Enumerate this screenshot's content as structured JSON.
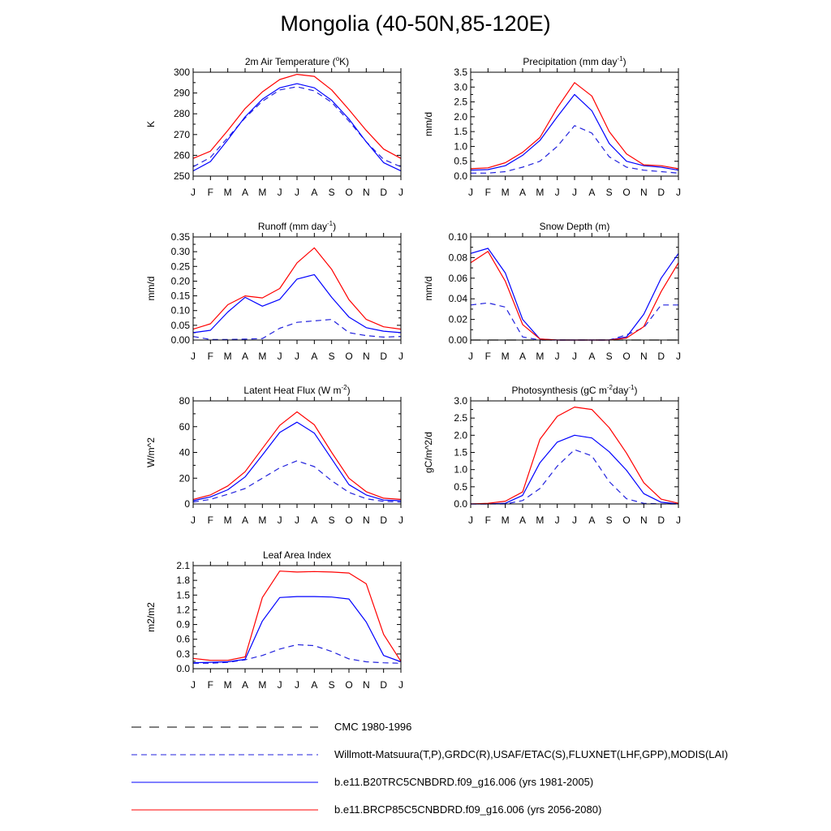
{
  "title": "Mongolia (40-50N,85-120E)",
  "months": [
    "J",
    "F",
    "M",
    "A",
    "M",
    "J",
    "J",
    "A",
    "S",
    "O",
    "N",
    "D",
    "J"
  ],
  "series_styles": [
    {
      "key": "cmc",
      "color": "#000000",
      "dash": "12,10"
    },
    {
      "key": "obs",
      "color": "#2222dd",
      "dash": "7,5"
    },
    {
      "key": "hist",
      "color": "#0000ff",
      "dash": ""
    },
    {
      "key": "rcp",
      "color": "#ff0000",
      "dash": ""
    }
  ],
  "chart_data": [
    {
      "type": "line",
      "title": "2m Air Temperature (",
      "title_sup": "o",
      "title_after": "K)",
      "ylabel": "K",
      "ylim": [
        250,
        300
      ],
      "yticks": [
        250,
        260,
        270,
        280,
        290,
        300
      ],
      "yticklabels": [
        "250",
        "260",
        "270",
        "280",
        "290",
        "300"
      ],
      "series": [
        {
          "name": "obs",
          "values": [
            254.5,
            259.0,
            268.5,
            278.0,
            286.0,
            291.5,
            293.0,
            291.0,
            285.5,
            276.5,
            266.5,
            258.0,
            254.5
          ]
        },
        {
          "name": "hist",
          "values": [
            252.5,
            257.0,
            267.5,
            278.5,
            287.0,
            292.5,
            294.5,
            292.5,
            286.5,
            277.5,
            266.5,
            256.5,
            252.5
          ]
        },
        {
          "name": "rcp",
          "values": [
            258.5,
            262.0,
            272.0,
            282.5,
            290.5,
            296.5,
            299.0,
            298.0,
            291.5,
            282.0,
            272.0,
            263.0,
            258.5
          ]
        }
      ]
    },
    {
      "type": "line",
      "title": "Precipitation (mm day",
      "title_sup": "-1",
      "title_after": ")",
      "ylabel": "mm/d",
      "ylim": [
        0,
        3.5
      ],
      "yticks": [
        0,
        0.5,
        1.0,
        1.5,
        2.0,
        2.5,
        3.0,
        3.5
      ],
      "yticklabels": [
        "0.0",
        "0.5",
        "1.0",
        "1.5",
        "2.0",
        "2.5",
        "3.0",
        "3.5"
      ],
      "series": [
        {
          "name": "obs",
          "values": [
            0.1,
            0.1,
            0.15,
            0.3,
            0.5,
            1.0,
            1.7,
            1.45,
            0.65,
            0.3,
            0.2,
            0.15,
            0.1
          ]
        },
        {
          "name": "hist",
          "values": [
            0.2,
            0.22,
            0.35,
            0.7,
            1.2,
            2.0,
            2.75,
            2.2,
            1.1,
            0.5,
            0.35,
            0.3,
            0.2
          ]
        },
        {
          "name": "rcp",
          "values": [
            0.25,
            0.28,
            0.45,
            0.8,
            1.3,
            2.3,
            3.15,
            2.7,
            1.5,
            0.75,
            0.38,
            0.35,
            0.25
          ]
        }
      ]
    },
    {
      "type": "line",
      "title": "Runoff (mm day",
      "title_sup": "-1",
      "title_after": ")",
      "ylabel": "mm/d",
      "ylim": [
        0,
        0.35
      ],
      "yticks": [
        0,
        0.05,
        0.1,
        0.15,
        0.2,
        0.25,
        0.3,
        0.35
      ],
      "yticklabels": [
        "0.00",
        "0.05",
        "0.10",
        "0.15",
        "0.20",
        "0.25",
        "0.30",
        "0.35"
      ],
      "series": [
        {
          "name": "obs",
          "values": [
            0.012,
            0.002,
            0.002,
            0.003,
            0.005,
            0.04,
            0.06,
            0.065,
            0.07,
            0.025,
            0.015,
            0.01,
            0.012
          ]
        },
        {
          "name": "hist",
          "values": [
            0.025,
            0.033,
            0.095,
            0.145,
            0.115,
            0.138,
            0.207,
            0.222,
            0.145,
            0.078,
            0.042,
            0.03,
            0.025
          ]
        },
        {
          "name": "rcp",
          "values": [
            0.037,
            0.055,
            0.12,
            0.15,
            0.143,
            0.175,
            0.262,
            0.313,
            0.24,
            0.137,
            0.07,
            0.045,
            0.037
          ]
        }
      ]
    },
    {
      "type": "line",
      "title": "Snow Depth (m)",
      "title_sup": "",
      "title_after": "",
      "ylabel": "mm/d",
      "ylim": [
        0,
        0.1
      ],
      "yticks": [
        0,
        0.02,
        0.04,
        0.06,
        0.08,
        0.1
      ],
      "yticklabels": [
        "0.00",
        "0.02",
        "0.04",
        "0.06",
        "0.08",
        "0.10"
      ],
      "series": [
        {
          "name": "cmc",
          "values": [
            0.0,
            0.0,
            0.0,
            0.0,
            0.0,
            0.0,
            0.0,
            0.0,
            0.0,
            0.0,
            0.0,
            0.0,
            0.0
          ]
        },
        {
          "name": "obs",
          "values": [
            0.034,
            0.036,
            0.032,
            0.003,
            0.0,
            0.0,
            0.0,
            0.0,
            0.0,
            0.005,
            0.012,
            0.034,
            0.034
          ]
        },
        {
          "name": "hist",
          "values": [
            0.084,
            0.089,
            0.065,
            0.02,
            0.001,
            0.0,
            0.0,
            0.0,
            0.0,
            0.003,
            0.025,
            0.06,
            0.084
          ]
        },
        {
          "name": "rcp",
          "values": [
            0.075,
            0.086,
            0.057,
            0.015,
            0.001,
            0.0,
            0.0,
            0.0,
            0.0,
            0.002,
            0.013,
            0.047,
            0.075
          ]
        }
      ]
    },
    {
      "type": "line",
      "title": "Latent Heat Flux (W m",
      "title_sup": "-2",
      "title_after": ")",
      "ylabel": "W/m^2",
      "ylim": [
        0,
        80
      ],
      "yticks": [
        0,
        20,
        40,
        60,
        80
      ],
      "yticklabels": [
        "0",
        "20",
        "40",
        "60",
        "80"
      ],
      "series": [
        {
          "name": "obs",
          "values": [
            1.5,
            3.5,
            7.5,
            12.0,
            20.0,
            28.0,
            33.5,
            29.0,
            18.0,
            9.0,
            4.0,
            2.0,
            1.5
          ]
        },
        {
          "name": "hist",
          "values": [
            2.5,
            5.5,
            11.0,
            21.0,
            38.0,
            55.5,
            63.5,
            55.0,
            35.0,
            15.0,
            7.0,
            3.0,
            2.5
          ]
        },
        {
          "name": "rcp",
          "values": [
            3.5,
            7.0,
            14.0,
            25.0,
            43.0,
            61.0,
            71.5,
            61.5,
            40.0,
            20.0,
            9.5,
            4.5,
            3.5
          ]
        }
      ]
    },
    {
      "type": "line",
      "title": "Photosynthesis (gC m",
      "title_sup": "-2",
      "title_after": "day",
      "title_sup2": "-1",
      "title_after2": ")",
      "ylabel": "gC/m^2/d",
      "ylim": [
        0,
        3.0
      ],
      "yticks": [
        0,
        0.5,
        1.0,
        1.5,
        2.0,
        2.5,
        3.0
      ],
      "yticklabels": [
        "0.0",
        "0.5",
        "1.0",
        "1.5",
        "2.0",
        "2.5",
        "3.0"
      ],
      "series": [
        {
          "name": "obs",
          "values": [
            0.0,
            0.0,
            0.0,
            0.1,
            0.45,
            1.1,
            1.58,
            1.4,
            0.65,
            0.15,
            0.02,
            0.0,
            0.0
          ]
        },
        {
          "name": "hist",
          "values": [
            0.0,
            0.0,
            0.02,
            0.25,
            1.2,
            1.8,
            2.0,
            1.92,
            1.52,
            0.98,
            0.3,
            0.05,
            0.0
          ]
        },
        {
          "name": "rcp",
          "values": [
            0.0,
            0.02,
            0.08,
            0.35,
            1.88,
            2.55,
            2.82,
            2.75,
            2.22,
            1.48,
            0.62,
            0.14,
            0.02
          ]
        }
      ]
    },
    {
      "type": "line",
      "title": "Leaf Area Index",
      "title_sup": "",
      "title_after": "",
      "ylabel": "m2/m2",
      "ylim": [
        0,
        2.1
      ],
      "yticks": [
        0,
        0.3,
        0.6,
        0.9,
        1.2,
        1.5,
        1.8,
        2.1
      ],
      "yticklabels": [
        "0.0",
        "0.3",
        "0.6",
        "0.9",
        "1.2",
        "1.5",
        "1.8",
        "2.1"
      ],
      "series": [
        {
          "name": "obs",
          "values": [
            0.11,
            0.11,
            0.13,
            0.18,
            0.27,
            0.4,
            0.49,
            0.47,
            0.35,
            0.2,
            0.14,
            0.12,
            0.11
          ]
        },
        {
          "name": "hist",
          "values": [
            0.12,
            0.13,
            0.14,
            0.19,
            0.97,
            1.45,
            1.47,
            1.47,
            1.46,
            1.42,
            0.95,
            0.27,
            0.14
          ]
        },
        {
          "name": "rcp",
          "values": [
            0.21,
            0.17,
            0.17,
            0.24,
            1.45,
            1.99,
            1.97,
            1.98,
            1.97,
            1.95,
            1.73,
            0.7,
            0.15
          ]
        }
      ]
    }
  ],
  "legend": {
    "entries": [
      {
        "key": "cmc",
        "label": "CMC 1980-1996"
      },
      {
        "key": "obs",
        "label": "Willmott-Matsuura(T,P),GRDC(R),USAF/ETAC(S),FLUXNET(LHF,GPP),MODIS(LAI)"
      },
      {
        "key": "hist",
        "label": "b.e11.B20TRC5CNBDRD.f09_g16.006 (yrs 1981-2005)"
      },
      {
        "key": "rcp",
        "label": "b.e11.BRCP85C5CNBDRD.f09_g16.006 (yrs 2056-2080)"
      }
    ]
  }
}
